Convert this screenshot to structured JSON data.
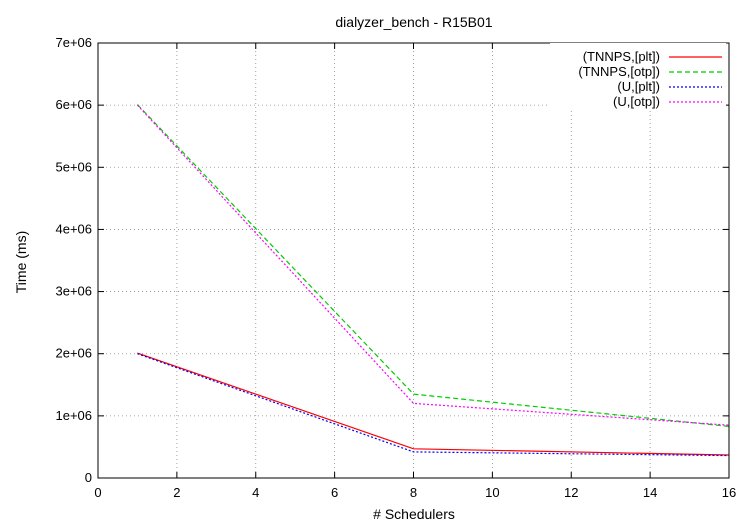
{
  "chart_data": {
    "type": "line",
    "title": "dialyzer_bench - R15B01",
    "xlabel": "# Schedulers",
    "ylabel": "Time (ms)",
    "xlim": [
      0,
      16
    ],
    "ylim": [
      0,
      7000000
    ],
    "x_ticks": [
      0,
      2,
      4,
      6,
      8,
      10,
      12,
      14,
      16
    ],
    "y_ticks": [
      0,
      1000000,
      2000000,
      3000000,
      4000000,
      5000000,
      6000000,
      7000000
    ],
    "x_tick_labels": [
      "0",
      "2",
      "4",
      "6",
      "8",
      "10",
      "12",
      "14",
      "16"
    ],
    "y_tick_labels": [
      "0",
      "1e+06",
      "2e+06",
      "3e+06",
      "4e+06",
      "5e+06",
      "6e+06",
      "7e+06"
    ],
    "grid": true,
    "legend_position": "top-right",
    "series": [
      {
        "name": "(TNNPS,[plt])",
        "color": "#ff0000",
        "dash": "solid",
        "x": [
          1,
          8,
          16
        ],
        "y": [
          2010000,
          470000,
          370000
        ]
      },
      {
        "name": "(TNNPS,[otp])",
        "color": "#00cc00",
        "dash": "dashed",
        "x": [
          1,
          8,
          16
        ],
        "y": [
          6010000,
          1350000,
          830000
        ]
      },
      {
        "name": "(U,[plt])",
        "color": "#0000ff",
        "dash": "dotted",
        "x": [
          1,
          8,
          16
        ],
        "y": [
          2000000,
          420000,
          360000
        ]
      },
      {
        "name": "(U,[otp])",
        "color": "#ff00ff",
        "dash": "dotted",
        "x": [
          1,
          8,
          16
        ],
        "y": [
          6000000,
          1200000,
          850000
        ]
      }
    ]
  }
}
